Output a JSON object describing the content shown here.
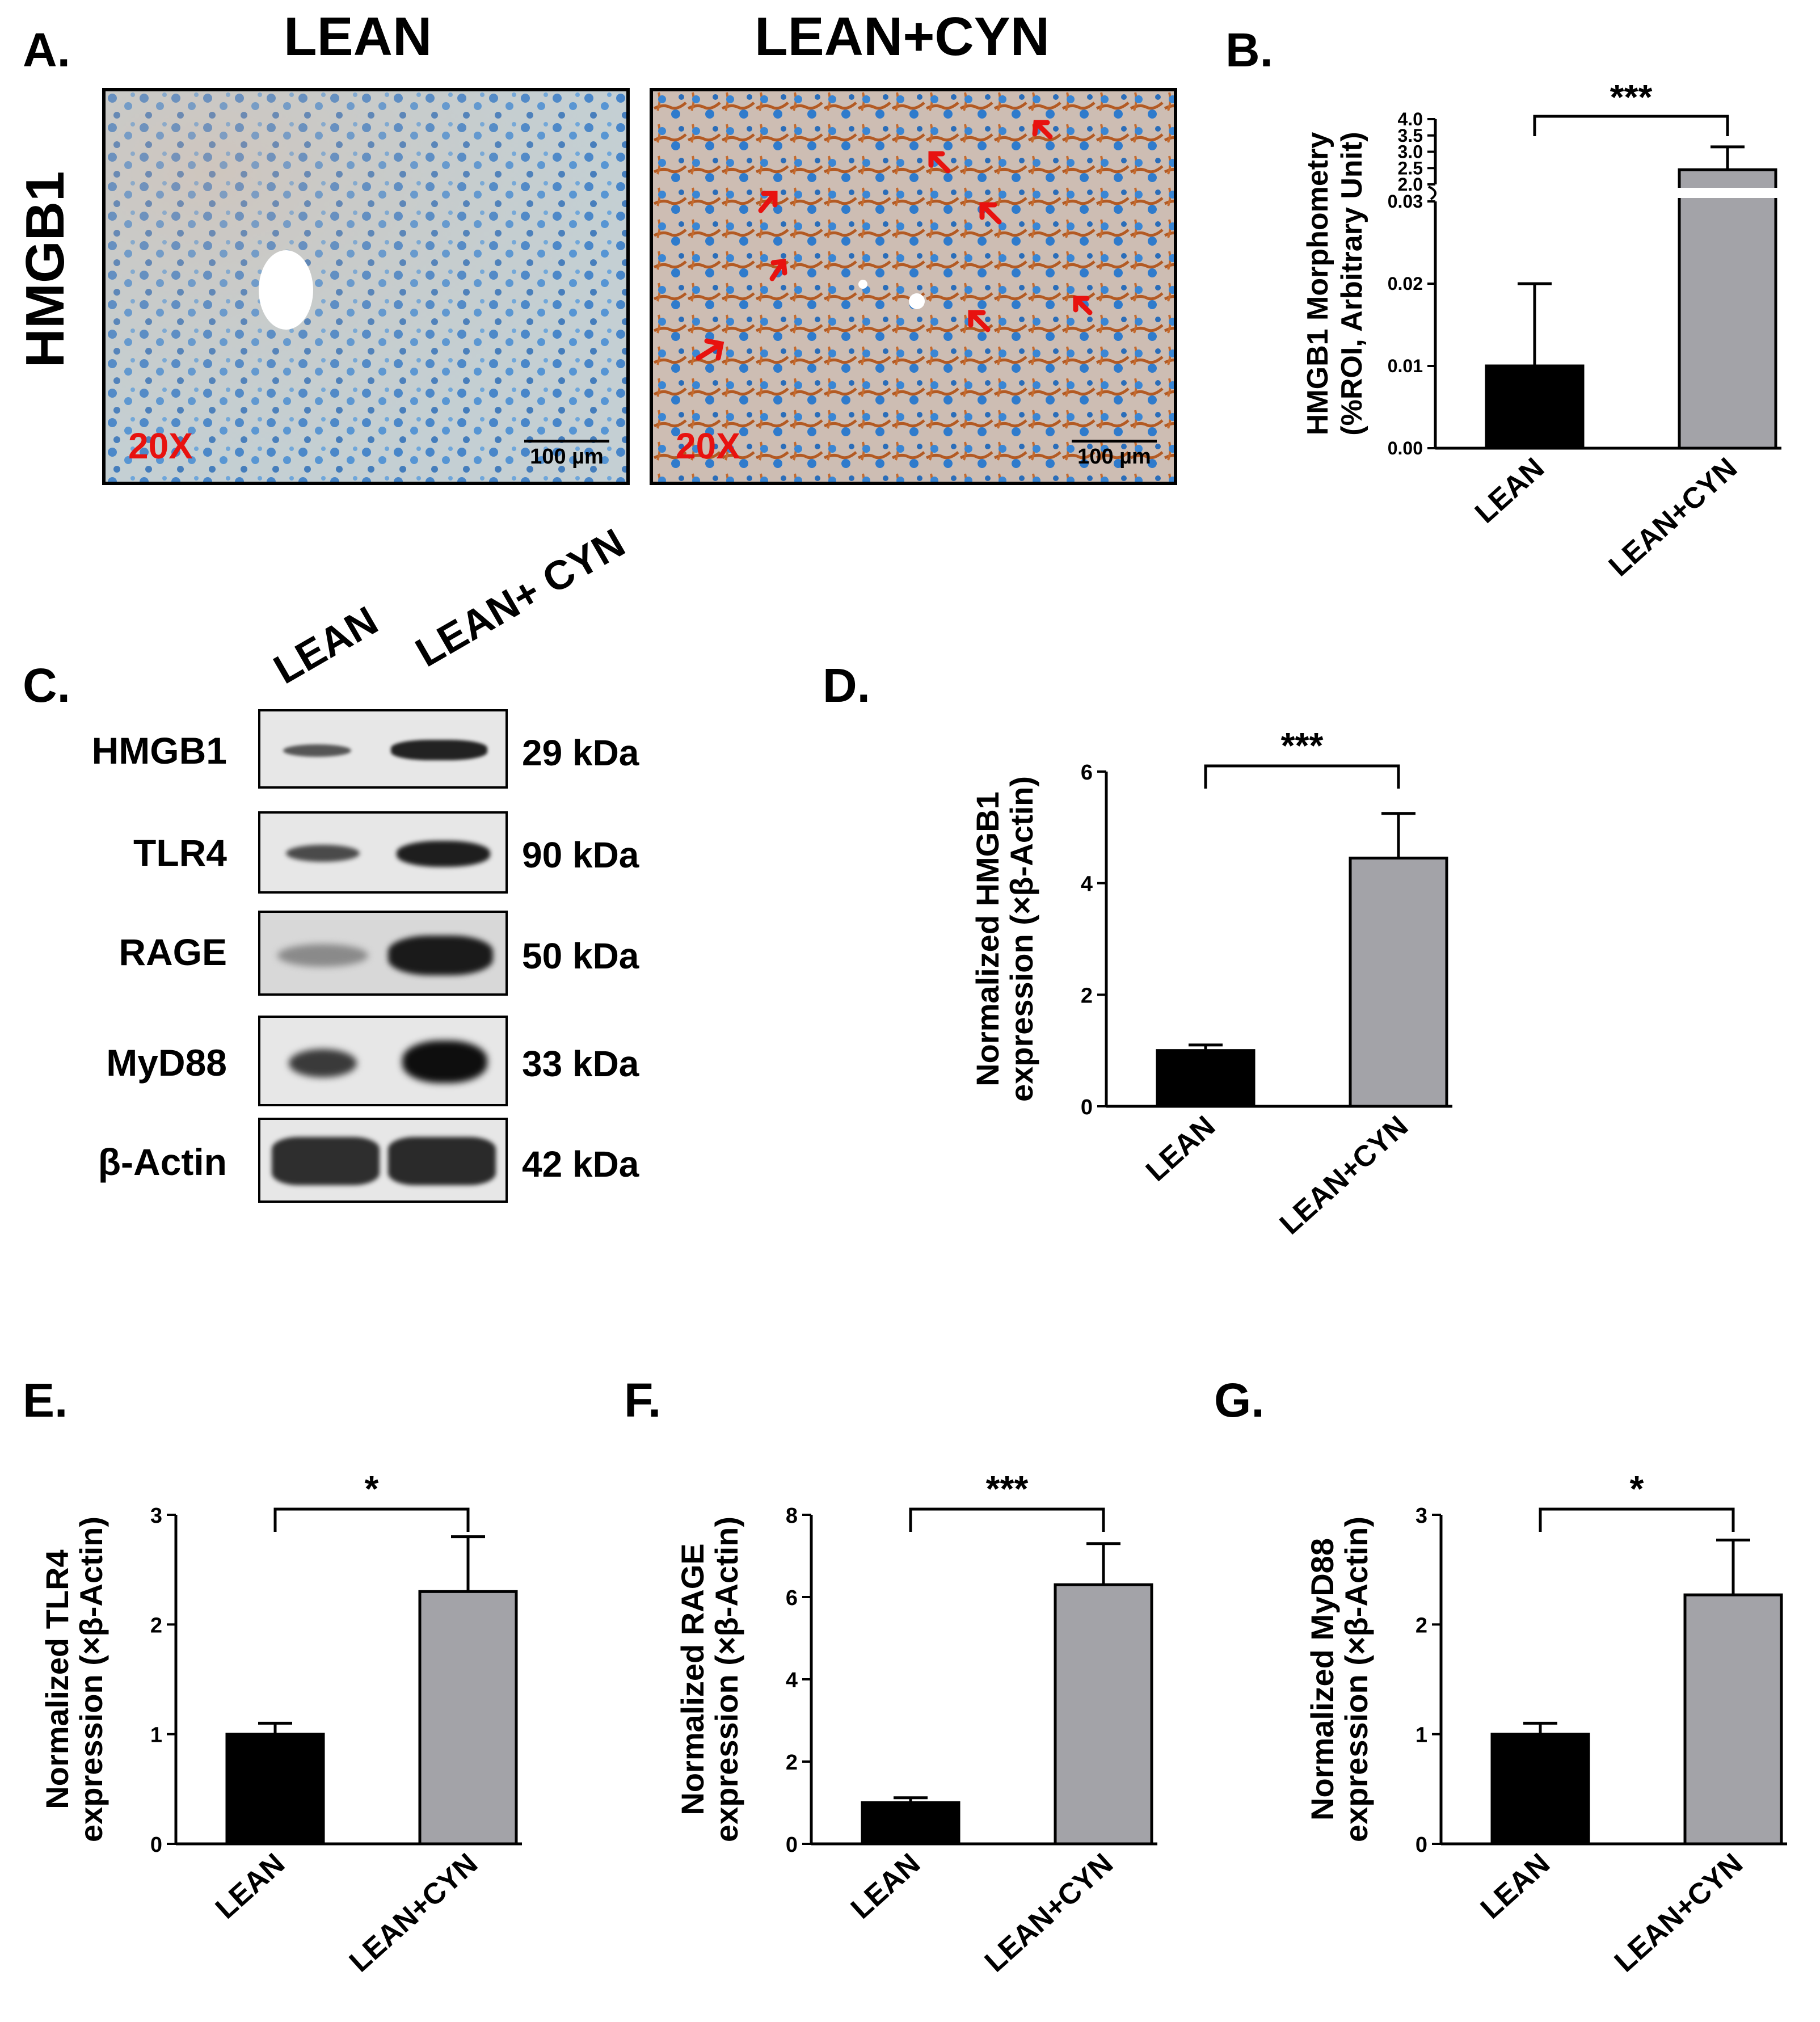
{
  "panels": {
    "a": "A.",
    "b": "B.",
    "c": "C.",
    "d": "D.",
    "e": "E.",
    "f": "F.",
    "g": "G."
  },
  "micrographs": {
    "row_label": "HMGB1",
    "left_title": "LEAN",
    "right_title": "LEAN+CYN",
    "magnification": "20X",
    "scale_bar": "100 µm"
  },
  "blot": {
    "lanes": [
      "LEAN",
      "LEAN+ CYN"
    ],
    "rows": [
      {
        "label": "HMGB1",
        "kda": "29 kDa"
      },
      {
        "label": "TLR4",
        "kda": "90 kDa"
      },
      {
        "label": "RAGE",
        "kda": "50 kDa"
      },
      {
        "label": "MyD88",
        "kda": "33 kDa"
      },
      {
        "label": "β-Actin",
        "kda": "42 kDa"
      }
    ]
  },
  "colors": {
    "lean_bar": "#000000",
    "cyn_bar": "#a3a3a8",
    "arrow": "#e8120f"
  },
  "chart_data": [
    {
      "id": "B",
      "type": "bar",
      "categories": [
        "LEAN",
        "LEAN+CYN"
      ],
      "values": [
        0.01,
        2.45
      ],
      "errors": [
        0.01,
        0.7
      ],
      "ylabel_line1": "HMGB1 Morphometry",
      "ylabel_line2": "(%ROI, Arbitrary Unit)",
      "broken_axis": true,
      "lower_ylim": [
        0,
        0.03
      ],
      "lower_ticks": [
        "0.00",
        "0.01",
        "0.02",
        "0.03"
      ],
      "upper_ylim": [
        2.0,
        4.0
      ],
      "upper_ticks": [
        "2.0",
        "2.5",
        "3.0",
        "3.5",
        "4.0"
      ],
      "significance": "***"
    },
    {
      "id": "D",
      "type": "bar",
      "categories": [
        "LEAN",
        "LEAN+CYN"
      ],
      "values": [
        1.0,
        4.45
      ],
      "errors": [
        0.1,
        0.8
      ],
      "ylabel_line1": "Normalized HMGB1",
      "ylabel_line2": "expression (×β-Actin)",
      "ylim": [
        0,
        6
      ],
      "ticks": [
        "0",
        "2",
        "4",
        "6"
      ],
      "significance": "***"
    },
    {
      "id": "E",
      "type": "bar",
      "categories": [
        "LEAN",
        "LEAN+CYN"
      ],
      "values": [
        1.0,
        2.3
      ],
      "errors": [
        0.1,
        0.5
      ],
      "ylabel_line1": "Normalized TLR4",
      "ylabel_line2": "expression (×β-Actin)",
      "ylim": [
        0,
        3
      ],
      "ticks": [
        "0",
        "1",
        "2",
        "3"
      ],
      "significance": "*"
    },
    {
      "id": "F",
      "type": "bar",
      "categories": [
        "LEAN",
        "LEAN+CYN"
      ],
      "values": [
        1.0,
        6.3
      ],
      "errors": [
        0.12,
        1.0
      ],
      "ylabel_line1": "Normalized RAGE",
      "ylabel_line2": "expression (×β-Actin)",
      "ylim": [
        0,
        8
      ],
      "ticks": [
        "0",
        "2",
        "4",
        "6",
        "8"
      ],
      "significance": "***"
    },
    {
      "id": "G",
      "type": "bar",
      "categories": [
        "LEAN",
        "LEAN+CYN"
      ],
      "values": [
        1.0,
        2.27
      ],
      "errors": [
        0.1,
        0.5
      ],
      "ylabel_line1": "Normalized MyD88",
      "ylabel_line2": "expression (×β-Actin)",
      "ylim": [
        0,
        3
      ],
      "ticks": [
        "0",
        "1",
        "2",
        "3"
      ],
      "significance": "*"
    }
  ]
}
